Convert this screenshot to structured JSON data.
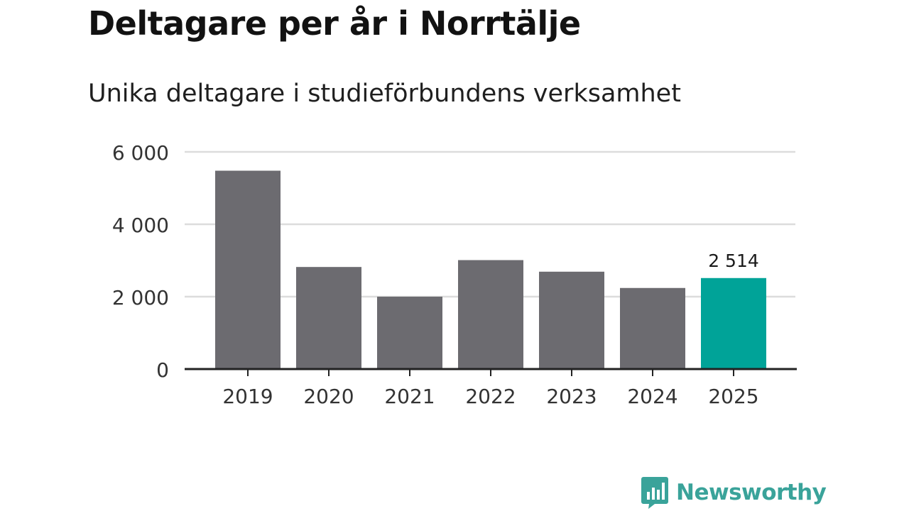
{
  "title": "Deltagare per år i Norrtälje",
  "subtitle": "Unika deltagare i studieförbundens verksamhet",
  "brand": {
    "name": "Newsworthy",
    "icon": "bar-chart-speech-bubble-icon",
    "color": "#3aa39a"
  },
  "colors": {
    "bar": "#6c6b70",
    "highlight": "#00a398",
    "grid": "#dcdcdc",
    "axis": "#222222"
  },
  "chart_data": {
    "type": "bar",
    "title": "Deltagare per år i Norrtälje",
    "subtitle": "Unika deltagare i studieförbundens verksamhet",
    "categories": [
      "2019",
      "2020",
      "2021",
      "2022",
      "2023",
      "2024",
      "2025"
    ],
    "values": [
      5480,
      2820,
      2000,
      3010,
      2690,
      2240,
      2514
    ],
    "highlight_index": 6,
    "data_labels": [
      {
        "index": 6,
        "text": "2 514"
      }
    ],
    "ylim": [
      0,
      6000
    ],
    "yticks": [
      0,
      2000,
      4000,
      6000
    ],
    "ytick_labels": [
      "0",
      "2 000",
      "4 000",
      "6 000"
    ],
    "grid": true,
    "xlabel": "",
    "ylabel": ""
  }
}
